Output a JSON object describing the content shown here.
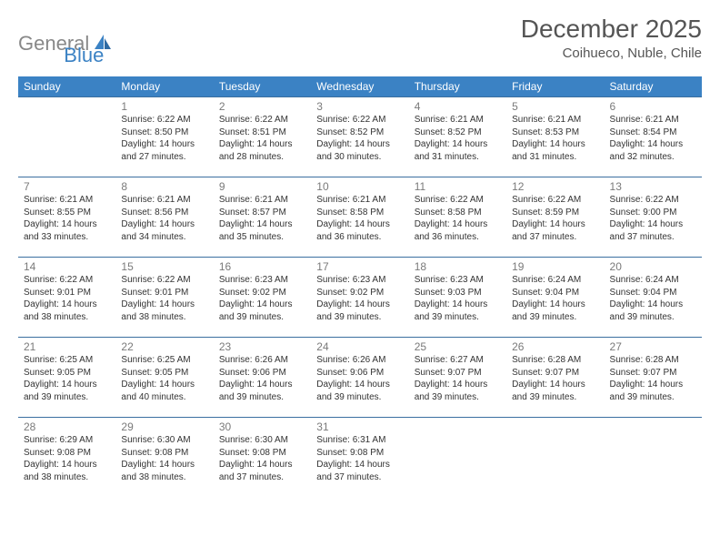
{
  "logo": {
    "part1": "General",
    "part2": "Blue"
  },
  "title": "December 2025",
  "location": "Coihueco, Nuble, Chile",
  "colors": {
    "header_bg": "#3b82c4",
    "header_text": "#ffffff",
    "row_border": "#3b6fa0",
    "daynum": "#7a7a7a",
    "body_text": "#333333",
    "logo_gray": "#888888",
    "logo_blue": "#3b82c4",
    "title_color": "#555555",
    "background": "#ffffff"
  },
  "typography": {
    "title_fontsize": 28,
    "location_fontsize": 15,
    "header_fontsize": 12,
    "daynum_fontsize": 12,
    "dayinfo_fontsize": 10,
    "logo_fontsize": 22
  },
  "type": "calendar-table",
  "columns": [
    "Sunday",
    "Monday",
    "Tuesday",
    "Wednesday",
    "Thursday",
    "Friday",
    "Saturday"
  ],
  "weeks": [
    [
      null,
      {
        "n": "1",
        "sr": "Sunrise: 6:22 AM",
        "ss": "Sunset: 8:50 PM",
        "d1": "Daylight: 14 hours",
        "d2": "and 27 minutes."
      },
      {
        "n": "2",
        "sr": "Sunrise: 6:22 AM",
        "ss": "Sunset: 8:51 PM",
        "d1": "Daylight: 14 hours",
        "d2": "and 28 minutes."
      },
      {
        "n": "3",
        "sr": "Sunrise: 6:22 AM",
        "ss": "Sunset: 8:52 PM",
        "d1": "Daylight: 14 hours",
        "d2": "and 30 minutes."
      },
      {
        "n": "4",
        "sr": "Sunrise: 6:21 AM",
        "ss": "Sunset: 8:52 PM",
        "d1": "Daylight: 14 hours",
        "d2": "and 31 minutes."
      },
      {
        "n": "5",
        "sr": "Sunrise: 6:21 AM",
        "ss": "Sunset: 8:53 PM",
        "d1": "Daylight: 14 hours",
        "d2": "and 31 minutes."
      },
      {
        "n": "6",
        "sr": "Sunrise: 6:21 AM",
        "ss": "Sunset: 8:54 PM",
        "d1": "Daylight: 14 hours",
        "d2": "and 32 minutes."
      }
    ],
    [
      {
        "n": "7",
        "sr": "Sunrise: 6:21 AM",
        "ss": "Sunset: 8:55 PM",
        "d1": "Daylight: 14 hours",
        "d2": "and 33 minutes."
      },
      {
        "n": "8",
        "sr": "Sunrise: 6:21 AM",
        "ss": "Sunset: 8:56 PM",
        "d1": "Daylight: 14 hours",
        "d2": "and 34 minutes."
      },
      {
        "n": "9",
        "sr": "Sunrise: 6:21 AM",
        "ss": "Sunset: 8:57 PM",
        "d1": "Daylight: 14 hours",
        "d2": "and 35 minutes."
      },
      {
        "n": "10",
        "sr": "Sunrise: 6:21 AM",
        "ss": "Sunset: 8:58 PM",
        "d1": "Daylight: 14 hours",
        "d2": "and 36 minutes."
      },
      {
        "n": "11",
        "sr": "Sunrise: 6:22 AM",
        "ss": "Sunset: 8:58 PM",
        "d1": "Daylight: 14 hours",
        "d2": "and 36 minutes."
      },
      {
        "n": "12",
        "sr": "Sunrise: 6:22 AM",
        "ss": "Sunset: 8:59 PM",
        "d1": "Daylight: 14 hours",
        "d2": "and 37 minutes."
      },
      {
        "n": "13",
        "sr": "Sunrise: 6:22 AM",
        "ss": "Sunset: 9:00 PM",
        "d1": "Daylight: 14 hours",
        "d2": "and 37 minutes."
      }
    ],
    [
      {
        "n": "14",
        "sr": "Sunrise: 6:22 AM",
        "ss": "Sunset: 9:01 PM",
        "d1": "Daylight: 14 hours",
        "d2": "and 38 minutes."
      },
      {
        "n": "15",
        "sr": "Sunrise: 6:22 AM",
        "ss": "Sunset: 9:01 PM",
        "d1": "Daylight: 14 hours",
        "d2": "and 38 minutes."
      },
      {
        "n": "16",
        "sr": "Sunrise: 6:23 AM",
        "ss": "Sunset: 9:02 PM",
        "d1": "Daylight: 14 hours",
        "d2": "and 39 minutes."
      },
      {
        "n": "17",
        "sr": "Sunrise: 6:23 AM",
        "ss": "Sunset: 9:02 PM",
        "d1": "Daylight: 14 hours",
        "d2": "and 39 minutes."
      },
      {
        "n": "18",
        "sr": "Sunrise: 6:23 AM",
        "ss": "Sunset: 9:03 PM",
        "d1": "Daylight: 14 hours",
        "d2": "and 39 minutes."
      },
      {
        "n": "19",
        "sr": "Sunrise: 6:24 AM",
        "ss": "Sunset: 9:04 PM",
        "d1": "Daylight: 14 hours",
        "d2": "and 39 minutes."
      },
      {
        "n": "20",
        "sr": "Sunrise: 6:24 AM",
        "ss": "Sunset: 9:04 PM",
        "d1": "Daylight: 14 hours",
        "d2": "and 39 minutes."
      }
    ],
    [
      {
        "n": "21",
        "sr": "Sunrise: 6:25 AM",
        "ss": "Sunset: 9:05 PM",
        "d1": "Daylight: 14 hours",
        "d2": "and 39 minutes."
      },
      {
        "n": "22",
        "sr": "Sunrise: 6:25 AM",
        "ss": "Sunset: 9:05 PM",
        "d1": "Daylight: 14 hours",
        "d2": "and 40 minutes."
      },
      {
        "n": "23",
        "sr": "Sunrise: 6:26 AM",
        "ss": "Sunset: 9:06 PM",
        "d1": "Daylight: 14 hours",
        "d2": "and 39 minutes."
      },
      {
        "n": "24",
        "sr": "Sunrise: 6:26 AM",
        "ss": "Sunset: 9:06 PM",
        "d1": "Daylight: 14 hours",
        "d2": "and 39 minutes."
      },
      {
        "n": "25",
        "sr": "Sunrise: 6:27 AM",
        "ss": "Sunset: 9:07 PM",
        "d1": "Daylight: 14 hours",
        "d2": "and 39 minutes."
      },
      {
        "n": "26",
        "sr": "Sunrise: 6:28 AM",
        "ss": "Sunset: 9:07 PM",
        "d1": "Daylight: 14 hours",
        "d2": "and 39 minutes."
      },
      {
        "n": "27",
        "sr": "Sunrise: 6:28 AM",
        "ss": "Sunset: 9:07 PM",
        "d1": "Daylight: 14 hours",
        "d2": "and 39 minutes."
      }
    ],
    [
      {
        "n": "28",
        "sr": "Sunrise: 6:29 AM",
        "ss": "Sunset: 9:08 PM",
        "d1": "Daylight: 14 hours",
        "d2": "and 38 minutes."
      },
      {
        "n": "29",
        "sr": "Sunrise: 6:30 AM",
        "ss": "Sunset: 9:08 PM",
        "d1": "Daylight: 14 hours",
        "d2": "and 38 minutes."
      },
      {
        "n": "30",
        "sr": "Sunrise: 6:30 AM",
        "ss": "Sunset: 9:08 PM",
        "d1": "Daylight: 14 hours",
        "d2": "and 37 minutes."
      },
      {
        "n": "31",
        "sr": "Sunrise: 6:31 AM",
        "ss": "Sunset: 9:08 PM",
        "d1": "Daylight: 14 hours",
        "d2": "and 37 minutes."
      },
      null,
      null,
      null
    ]
  ]
}
